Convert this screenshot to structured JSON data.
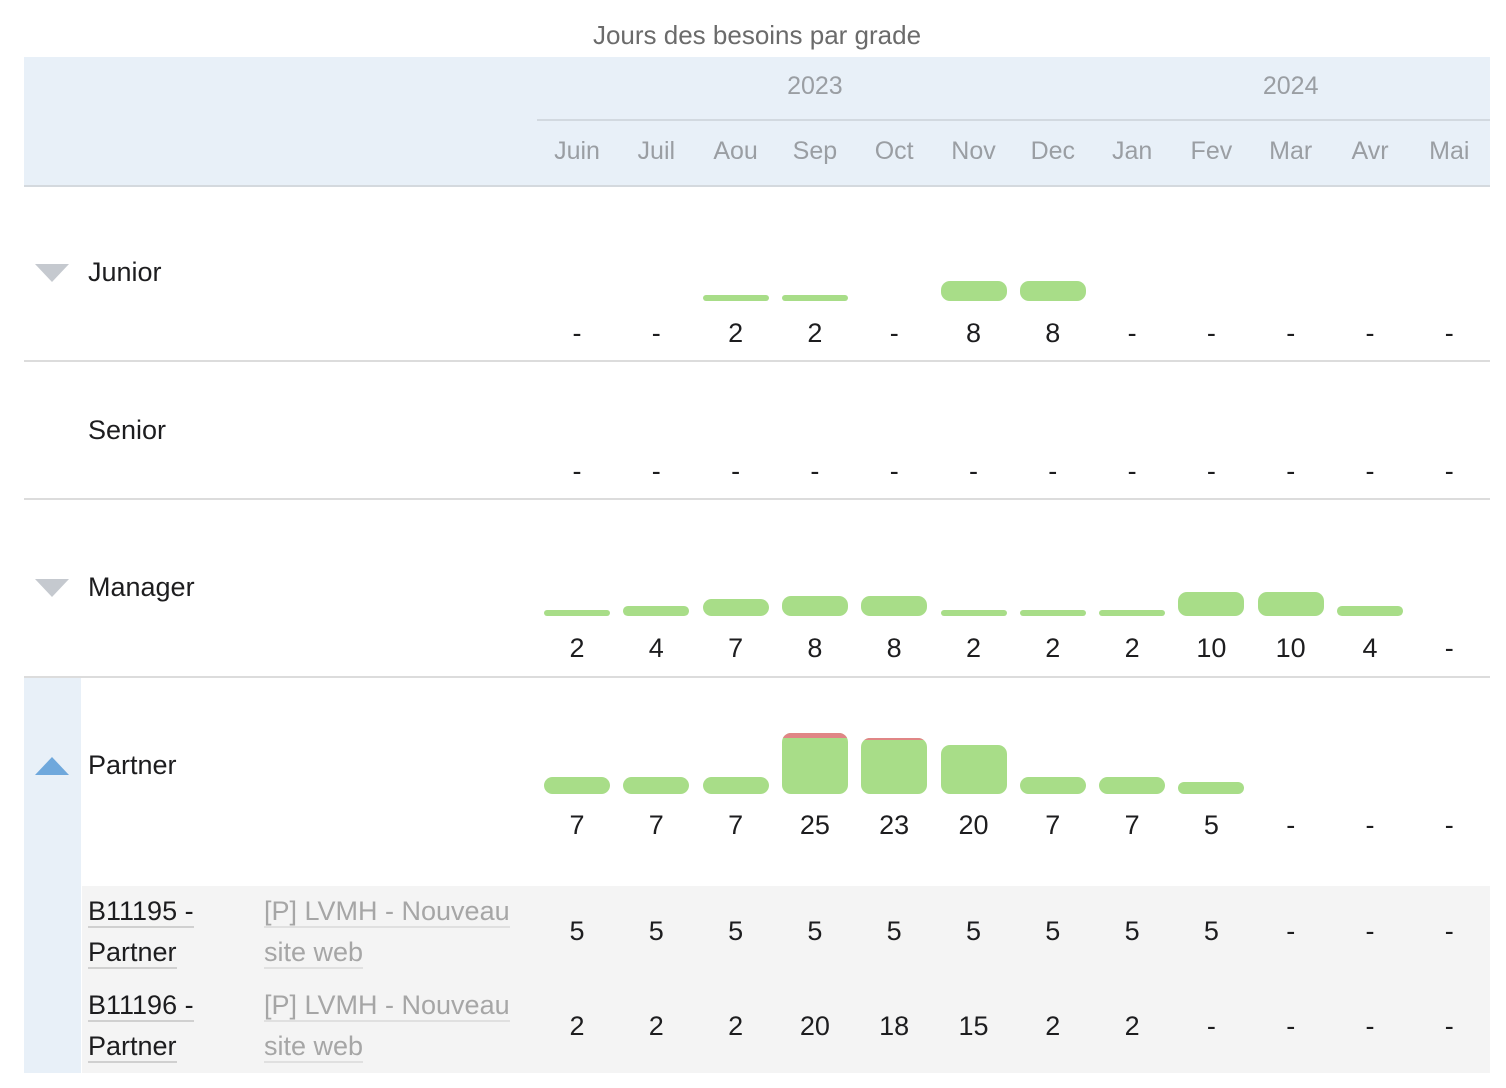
{
  "chart_data": {
    "type": "bar",
    "title": "Jours des besoins par grade",
    "years": [
      {
        "label": "2023",
        "month_start": 0,
        "month_end": 6
      },
      {
        "label": "2024",
        "month_start": 7,
        "month_end": 11
      }
    ],
    "categories": [
      "Juin",
      "Juil",
      "Aou",
      "Sep",
      "Oct",
      "Nov",
      "Dec",
      "Jan",
      "Fev",
      "Mar",
      "Avr",
      "Mai"
    ],
    "capacity": [
      null,
      null,
      null,
      23,
      22,
      null,
      null,
      null,
      null,
      null,
      null,
      null
    ],
    "series": [
      {
        "name": "Junior",
        "expanded": false,
        "values": [
          null,
          null,
          2,
          2,
          null,
          8,
          8,
          null,
          null,
          null,
          null,
          null
        ],
        "labels": [
          "-",
          "-",
          "2",
          "2",
          "-",
          "8",
          "8",
          "-",
          "-",
          "-",
          "-",
          "-"
        ]
      },
      {
        "name": "Senior",
        "expanded": null,
        "values": [
          null,
          null,
          null,
          null,
          null,
          null,
          null,
          null,
          null,
          null,
          null,
          null
        ],
        "labels": [
          "-",
          "-",
          "-",
          "-",
          "-",
          "-",
          "-",
          "-",
          "-",
          "-",
          "-",
          "-"
        ]
      },
      {
        "name": "Manager",
        "expanded": false,
        "values": [
          2,
          4,
          7,
          8,
          8,
          2,
          2,
          2,
          10,
          10,
          4,
          null
        ],
        "labels": [
          "2",
          "4",
          "7",
          "8",
          "8",
          "2",
          "2",
          "2",
          "10",
          "10",
          "4",
          "-"
        ]
      },
      {
        "name": "Partner",
        "expanded": true,
        "values": [
          7,
          7,
          7,
          25,
          23,
          20,
          7,
          7,
          5,
          null,
          null,
          null
        ],
        "labels": [
          "7",
          "7",
          "7",
          "25",
          "23",
          "20",
          "7",
          "7",
          "5",
          "-",
          "-",
          "-"
        ]
      }
    ],
    "sub_rows": [
      {
        "id_line1": "B11195 -",
        "id_line2": "Partner",
        "project_line1": "[P] LVMH - Nouveau",
        "project_line2": "site web",
        "labels": [
          "5",
          "5",
          "5",
          "5",
          "5",
          "5",
          "5",
          "5",
          "5",
          "-",
          "-",
          "-"
        ]
      },
      {
        "id_line1": "B11196 -",
        "id_line2": "Partner",
        "project_line1": "[P] LVMH - Nouveau",
        "project_line2": "site web",
        "labels": [
          "2",
          "2",
          "2",
          "20",
          "18",
          "15",
          "2",
          "2",
          "-",
          "-",
          "-",
          "-"
        ]
      }
    ]
  },
  "colors": {
    "bar": "#a8dd88",
    "overflow": "#e08686",
    "header_bg": "#e8f0f8",
    "expand_active": "#6fa8dc"
  }
}
